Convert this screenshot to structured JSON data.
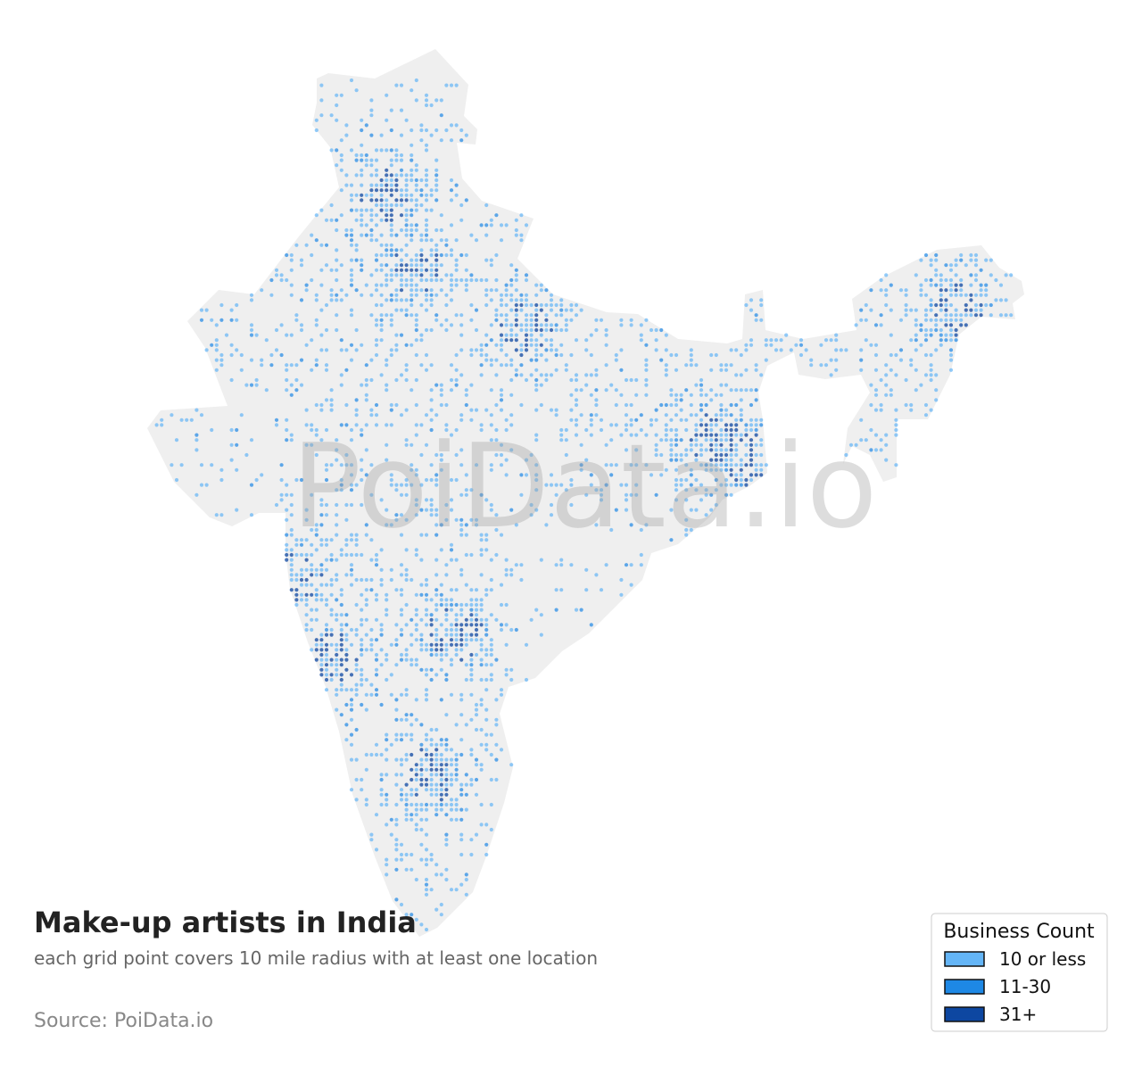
{
  "title": "Make-up artists in India",
  "subtitle": "each grid point covers 10 mile radius with at least one location",
  "source": "Source: PoiData.io",
  "watermark": "PoiData.io",
  "legend": {
    "title": "Business Count",
    "items": [
      {
        "label": "10 or less",
        "color": "#64b5f6"
      },
      {
        "label": "11-30",
        "color": "#1e88e5"
      },
      {
        "label": "31+",
        "color": "#0d47a1"
      }
    ]
  }
}
